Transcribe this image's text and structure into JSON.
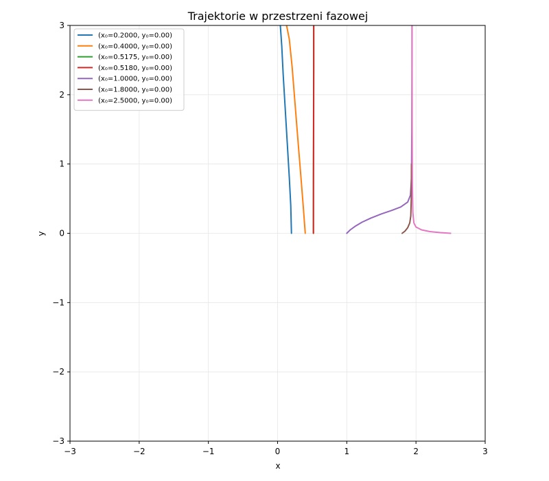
{
  "chart_data": {
    "type": "line",
    "title": "Trajektorie w przestrzeni fazowej",
    "xlabel": "x",
    "ylabel": "y",
    "xlim": [
      -3,
      3
    ],
    "ylim": [
      -3,
      3
    ],
    "xticks": [
      -3,
      -2,
      -1,
      0,
      1,
      2,
      3
    ],
    "yticks": [
      -3,
      -2,
      -1,
      0,
      1,
      2,
      3
    ],
    "xtick_labels": [
      "−3",
      "−2",
      "−1",
      "0",
      "1",
      "2",
      "3"
    ],
    "ytick_labels": [
      "−3",
      "−2",
      "−1",
      "0",
      "1",
      "2",
      "3"
    ],
    "grid": true,
    "legend_position": "upper-left",
    "series": [
      {
        "name": "(x₀=0.2000, y₀=0.00)",
        "color": "#1f77b4",
        "x": [
          0.2,
          0.19,
          0.17,
          0.14,
          0.11,
          0.08,
          0.06,
          0.04
        ],
        "y": [
          0.0,
          0.4,
          0.8,
          1.3,
          1.8,
          2.3,
          2.7,
          3.0
        ]
      },
      {
        "name": "(x₀=0.4000, y₀=0.00)",
        "color": "#ff7f0e",
        "x": [
          0.4,
          0.37,
          0.33,
          0.29,
          0.25,
          0.21,
          0.17,
          0.13
        ],
        "y": [
          0.0,
          0.4,
          0.9,
          1.4,
          1.9,
          2.4,
          2.8,
          3.0
        ]
      },
      {
        "name": "(x₀=0.5175, y₀=0.00)",
        "color": "#2ca02c",
        "x": [
          0.5175,
          0.518,
          0.52,
          0.522,
          0.522
        ],
        "y": [
          0.0,
          0.8,
          1.6,
          2.4,
          3.0
        ]
      },
      {
        "name": "(x₀=0.5180, y₀=0.00)",
        "color": "#d62728",
        "x": [
          0.518,
          0.519,
          0.521,
          0.523,
          0.523
        ],
        "y": [
          0.0,
          0.8,
          1.6,
          2.4,
          3.0
        ]
      },
      {
        "name": "(x₀=1.0000, y₀=0.00)",
        "color": "#9467bd",
        "x": [
          1.0,
          1.05,
          1.12,
          1.22,
          1.35,
          1.5,
          1.65,
          1.78,
          1.88,
          1.92,
          1.935,
          1.94,
          1.942,
          1.943
        ],
        "y": [
          0.0,
          0.05,
          0.1,
          0.16,
          0.22,
          0.28,
          0.33,
          0.38,
          0.45,
          0.55,
          0.8,
          1.5,
          2.3,
          3.0
        ]
      },
      {
        "name": "(x₀=1.8000, y₀=0.00)",
        "color": "#8c564b",
        "x": [
          1.8,
          1.84,
          1.88,
          1.91,
          1.925,
          1.932,
          1.935
        ],
        "y": [
          0.0,
          0.03,
          0.08,
          0.15,
          0.25,
          0.5,
          1.0
        ]
      },
      {
        "name": "(x₀=2.5000, y₀=0.00)",
        "color": "#e377c2",
        "x": [
          2.5,
          2.35,
          2.2,
          2.08,
          2.0,
          1.97,
          1.955,
          1.948,
          1.945,
          1.944,
          1.943
        ],
        "y": [
          0.0,
          0.01,
          0.025,
          0.05,
          0.09,
          0.15,
          0.3,
          0.7,
          1.5,
          2.3,
          3.0
        ]
      }
    ]
  }
}
